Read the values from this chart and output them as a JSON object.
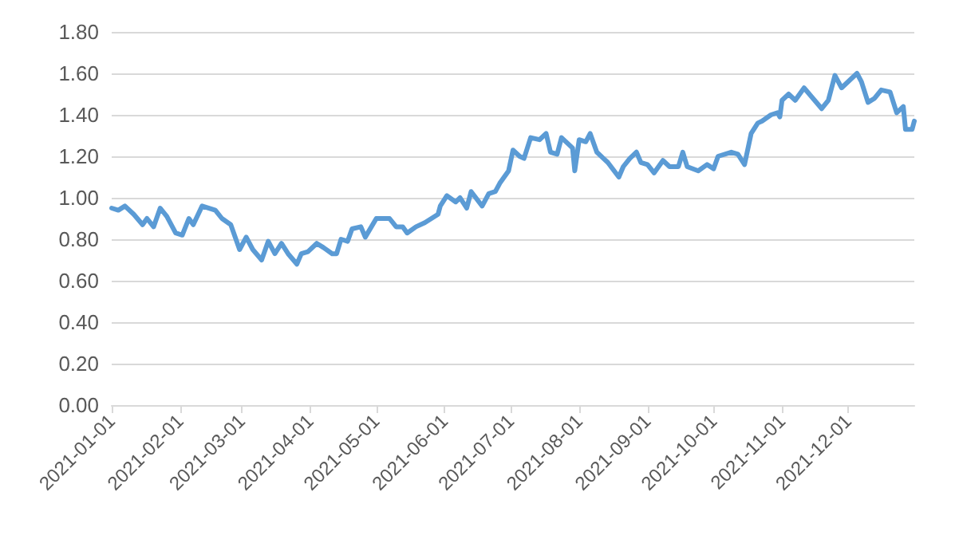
{
  "chart_data": {
    "type": "line",
    "line_style": "solid",
    "marker": "none",
    "grid": "y",
    "xlim": [
      "2021-01-01",
      "2021-12-31"
    ],
    "xticks": [
      "2021-01-01",
      "2021-02-01",
      "2021-03-01",
      "2021-04-01",
      "2021-05-01",
      "2021-06-01",
      "2021-07-01",
      "2021-08-01",
      "2021-09-01",
      "2021-10-01",
      "2021-11-01",
      "2021-12-01"
    ],
    "ylim": [
      0,
      1.8
    ],
    "yticks": [
      {
        "value": 0,
        "label": "0.00"
      },
      {
        "value": 0.2,
        "label": "0.20"
      },
      {
        "value": 0.4,
        "label": "0.40"
      },
      {
        "value": 0.6,
        "label": "0.60"
      },
      {
        "value": 0.8,
        "label": "0.80"
      },
      {
        "value": 1.0,
        "label": "1.00"
      },
      {
        "value": 1.2,
        "label": "1.20"
      },
      {
        "value": 1.4,
        "label": "1.40"
      },
      {
        "value": 1.6,
        "label": "1.60"
      },
      {
        "value": 1.8,
        "label": "1.80"
      }
    ],
    "x": [
      "2021-01-01",
      "2021-01-04",
      "2021-01-07",
      "2021-01-11",
      "2021-01-15",
      "2021-01-17",
      "2021-01-20",
      "2021-01-23",
      "2021-01-26",
      "2021-01-30",
      "2021-02-02",
      "2021-02-05",
      "2021-02-07",
      "2021-02-11",
      "2021-02-17",
      "2021-02-20",
      "2021-02-24",
      "2021-02-28",
      "2021-03-03",
      "2021-03-06",
      "2021-03-10",
      "2021-03-13",
      "2021-03-16",
      "2021-03-19",
      "2021-03-22",
      "2021-03-26",
      "2021-03-28",
      "2021-03-31",
      "2021-04-04",
      "2021-04-07",
      "2021-04-11",
      "2021-04-13",
      "2021-04-15",
      "2021-04-18",
      "2021-04-20",
      "2021-04-24",
      "2021-04-26",
      "2021-05-01",
      "2021-05-07",
      "2021-05-10",
      "2021-05-13",
      "2021-05-15",
      "2021-05-19",
      "2021-05-23",
      "2021-05-26",
      "2021-05-29",
      "2021-05-30",
      "2021-06-02",
      "2021-06-06",
      "2021-06-08",
      "2021-06-11",
      "2021-06-13",
      "2021-06-18",
      "2021-06-21",
      "2021-06-24",
      "2021-06-26",
      "2021-06-30",
      "2021-07-02",
      "2021-07-05",
      "2021-07-07",
      "2021-07-10",
      "2021-07-14",
      "2021-07-17",
      "2021-07-19",
      "2021-07-22",
      "2021-07-24",
      "2021-07-27",
      "2021-07-29",
      "2021-07-30",
      "2021-08-01",
      "2021-08-04",
      "2021-08-06",
      "2021-08-09",
      "2021-08-12",
      "2021-08-14",
      "2021-08-19",
      "2021-08-21",
      "2021-08-24",
      "2021-08-27",
      "2021-08-29",
      "2021-09-01",
      "2021-09-04",
      "2021-09-08",
      "2021-09-11",
      "2021-09-15",
      "2021-09-17",
      "2021-09-19",
      "2021-09-24",
      "2021-09-28",
      "2021-10-01",
      "2021-10-03",
      "2021-10-09",
      "2021-10-12",
      "2021-10-15",
      "2021-10-18",
      "2021-10-21",
      "2021-10-23",
      "2021-10-27",
      "2021-10-30",
      "2021-10-31",
      "2021-11-01",
      "2021-11-04",
      "2021-11-07",
      "2021-11-11",
      "2021-11-15",
      "2021-11-19",
      "2021-11-22",
      "2021-11-25",
      "2021-11-28",
      "2021-12-02",
      "2021-12-05",
      "2021-12-07",
      "2021-12-10",
      "2021-12-13",
      "2021-12-16",
      "2021-12-20",
      "2021-12-23",
      "2021-12-26",
      "2021-12-27",
      "2021-12-30",
      "2021-12-31"
    ],
    "series": [
      {
        "color": "#5b9bd5",
        "values": [
          0.95,
          0.94,
          0.96,
          0.92,
          0.87,
          0.9,
          0.86,
          0.95,
          0.91,
          0.83,
          0.82,
          0.9,
          0.87,
          0.96,
          0.94,
          0.9,
          0.87,
          0.75,
          0.81,
          0.75,
          0.7,
          0.79,
          0.73,
          0.78,
          0.73,
          0.68,
          0.73,
          0.74,
          0.78,
          0.76,
          0.73,
          0.73,
          0.8,
          0.79,
          0.85,
          0.86,
          0.81,
          0.9,
          0.9,
          0.86,
          0.86,
          0.83,
          0.86,
          0.88,
          0.9,
          0.92,
          0.96,
          1.01,
          0.98,
          1.0,
          0.95,
          1.03,
          0.96,
          1.02,
          1.03,
          1.07,
          1.13,
          1.23,
          1.2,
          1.19,
          1.29,
          1.28,
          1.31,
          1.22,
          1.21,
          1.29,
          1.26,
          1.24,
          1.13,
          1.28,
          1.27,
          1.31,
          1.22,
          1.19,
          1.17,
          1.1,
          1.15,
          1.19,
          1.22,
          1.17,
          1.16,
          1.12,
          1.18,
          1.15,
          1.15,
          1.22,
          1.15,
          1.13,
          1.16,
          1.14,
          1.2,
          1.22,
          1.21,
          1.16,
          1.31,
          1.36,
          1.37,
          1.4,
          1.41,
          1.39,
          1.47,
          1.5,
          1.47,
          1.53,
          1.48,
          1.43,
          1.47,
          1.59,
          1.53,
          1.57,
          1.6,
          1.56,
          1.46,
          1.48,
          1.52,
          1.51,
          1.41,
          1.44,
          1.33,
          1.33,
          1.37
        ]
      }
    ]
  }
}
